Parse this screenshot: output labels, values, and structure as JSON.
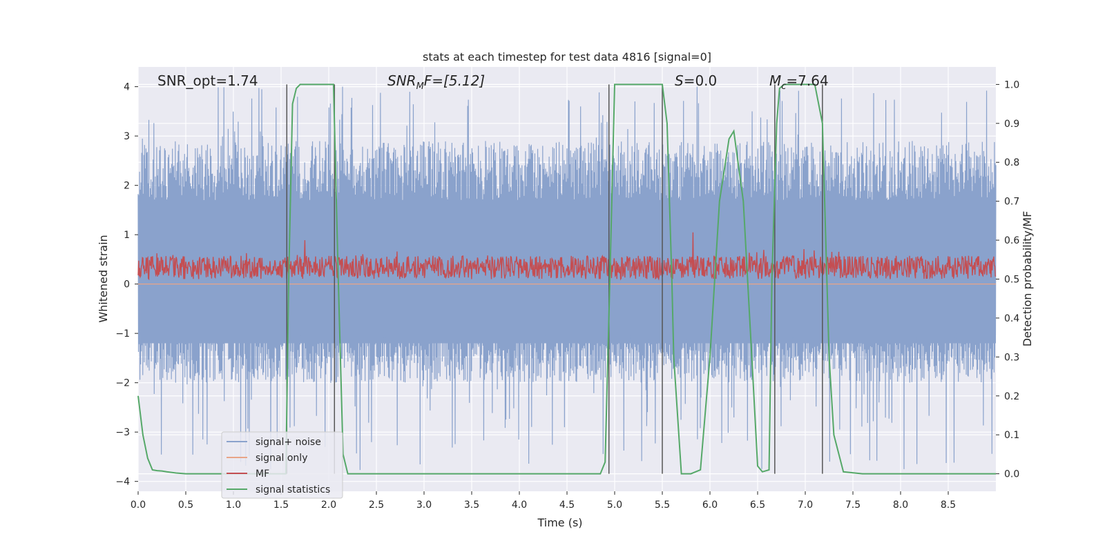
{
  "chart_data": {
    "type": "line",
    "title": "stats at each timestep for test data 4816 [signal=0]",
    "xlabel": "Time (s)",
    "ylabel_left": "Whitened strain",
    "ylabel_right": "Detection probability/MF",
    "xlim": [
      0,
      9.0
    ],
    "ylim_left": [
      -4.2,
      4.4
    ],
    "ylim_right": [
      -0.045,
      1.045
    ],
    "x_ticks": [
      "0.0",
      "0.5",
      "1.0",
      "1.5",
      "2.0",
      "2.5",
      "3.0",
      "3.5",
      "4.0",
      "4.5",
      "5.0",
      "5.5",
      "6.0",
      "6.5",
      "7.0",
      "7.5",
      "8.0",
      "8.5"
    ],
    "y_left_ticks": [
      "4",
      "3",
      "2",
      "1",
      "0",
      "−1",
      "−2",
      "−3",
      "−4"
    ],
    "y_right_ticks": [
      "1.0",
      "0.9",
      "0.8",
      "0.7",
      "0.6",
      "0.5",
      "0.4",
      "0.3",
      "0.2",
      "0.1",
      "0.0"
    ],
    "annotations": {
      "snr_opt": "SNR_opt=1.74",
      "snr_mf_main": "SNR",
      "snr_mf_sub": "M",
      "snr_mf_rest": "F=[5.12]",
      "s_main": "S",
      "s_rest": "=0.0",
      "mc_main": "M",
      "mc_sub": "c",
      "mc_rest": "=7.64"
    },
    "legend": {
      "location": "lower left",
      "entries": [
        "signal+ noise",
        "signal only",
        "MF",
        "signal statistics"
      ]
    },
    "series": [
      {
        "name": "signal+ noise",
        "axis": "left",
        "color": "#8aa2cc",
        "noise_range": [
          -3.8,
          4.0
        ],
        "typical_band": [
          -1.5,
          2.3
        ]
      },
      {
        "name": "signal only",
        "axis": "left",
        "color": "#e8a487",
        "values": "flat at 0"
      },
      {
        "name": "MF",
        "axis": "right",
        "color": "#c44e52",
        "baseline": 0.5,
        "typical_band": [
          0.5,
          0.56
        ],
        "peaks": [
          [
            1.75,
            0.6
          ],
          [
            5.82,
            0.62
          ],
          [
            7.28,
            0.57
          ]
        ]
      },
      {
        "name": "signal statistics",
        "axis": "right",
        "color": "#55a868",
        "x": [
          0.0,
          0.05,
          0.1,
          0.15,
          0.2,
          0.25,
          0.3,
          0.4,
          0.5,
          0.8,
          1.0,
          1.2,
          1.4,
          1.5,
          1.55,
          1.58,
          1.62,
          1.66,
          1.7,
          1.8,
          1.9,
          2.0,
          2.05,
          2.1,
          2.15,
          2.2,
          2.3,
          2.5,
          3.0,
          4.0,
          4.85,
          4.9,
          4.95,
          5.0,
          5.3,
          5.5,
          5.55,
          5.6,
          5.62,
          5.7,
          5.8,
          5.9,
          6.0,
          6.1,
          6.2,
          6.25,
          6.35,
          6.45,
          6.5,
          6.55,
          6.62,
          6.65,
          6.7,
          6.73,
          6.78,
          7.1,
          7.18,
          7.25,
          7.3,
          7.4,
          7.6,
          8.0,
          9.0
        ],
        "y": [
          0.2,
          0.1,
          0.04,
          0.01,
          0.008,
          0.007,
          0.005,
          0.002,
          0.0,
          0.0,
          0.0,
          0.0,
          0.0,
          0.0,
          0.0,
          0.5,
          0.95,
          0.99,
          1.0,
          1.0,
          1.0,
          1.0,
          1.0,
          0.5,
          0.05,
          0.0,
          0.0,
          0.0,
          0.0,
          0.0,
          0.0,
          0.03,
          0.5,
          1.0,
          1.0,
          1.0,
          0.9,
          0.5,
          0.3,
          0.0,
          0.0,
          0.01,
          0.3,
          0.7,
          0.86,
          0.88,
          0.7,
          0.25,
          0.02,
          0.005,
          0.01,
          0.5,
          0.9,
          0.99,
          1.0,
          1.0,
          0.9,
          0.3,
          0.1,
          0.005,
          0.0,
          0.0,
          0.0
        ]
      }
    ],
    "vertical_lines": {
      "pairs": [
        [
          1.56,
          2.06
        ],
        [
          4.94,
          5.5
        ],
        [
          6.68,
          7.18
        ]
      ],
      "color": "#555555"
    }
  }
}
